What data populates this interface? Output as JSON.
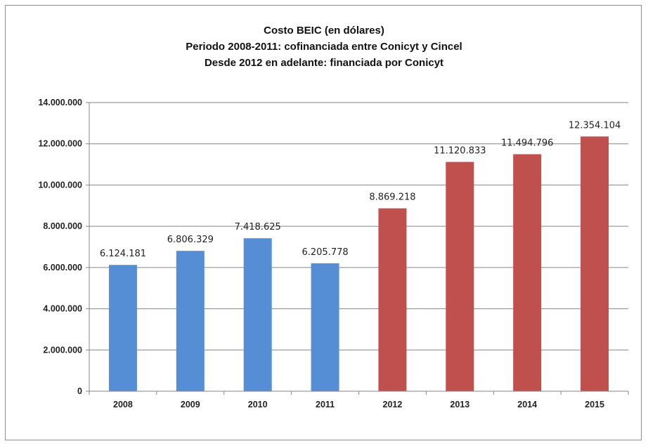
{
  "chart_data": {
    "type": "bar",
    "title_lines": [
      "Costo BEIC (en dólares)",
      "Periodo 2008-2011: cofinanciada entre Conicyt y Cincel",
      "Desde 2012 en adelante: financiada por Conicyt"
    ],
    "categories": [
      "2008",
      "2009",
      "2010",
      "2011",
      "2012",
      "2013",
      "2014",
      "2015"
    ],
    "values": [
      6124181,
      6806329,
      7418625,
      6205778,
      8869218,
      11120833,
      11494796,
      12354104
    ],
    "data_labels": [
      "6.124.181",
      "6.806.329",
      "7.418.625",
      "6.205.778",
      "8.869.218",
      "11.120.833",
      "11.494.796",
      "12.354.104"
    ],
    "bar_colors": [
      "#558ed5",
      "#558ed5",
      "#558ed5",
      "#558ed5",
      "#c0504d",
      "#c0504d",
      "#c0504d",
      "#c0504d"
    ],
    "ylim": [
      0,
      14000000
    ],
    "yticks": [
      0,
      2000000,
      4000000,
      6000000,
      8000000,
      10000000,
      12000000,
      14000000
    ],
    "ytick_labels": [
      "0",
      "2.000.000",
      "4.000.000",
      "6.000.000",
      "8.000.000",
      "10.000.000",
      "12.000.000",
      "14.000.000"
    ],
    "grid": true,
    "legend": "none"
  }
}
